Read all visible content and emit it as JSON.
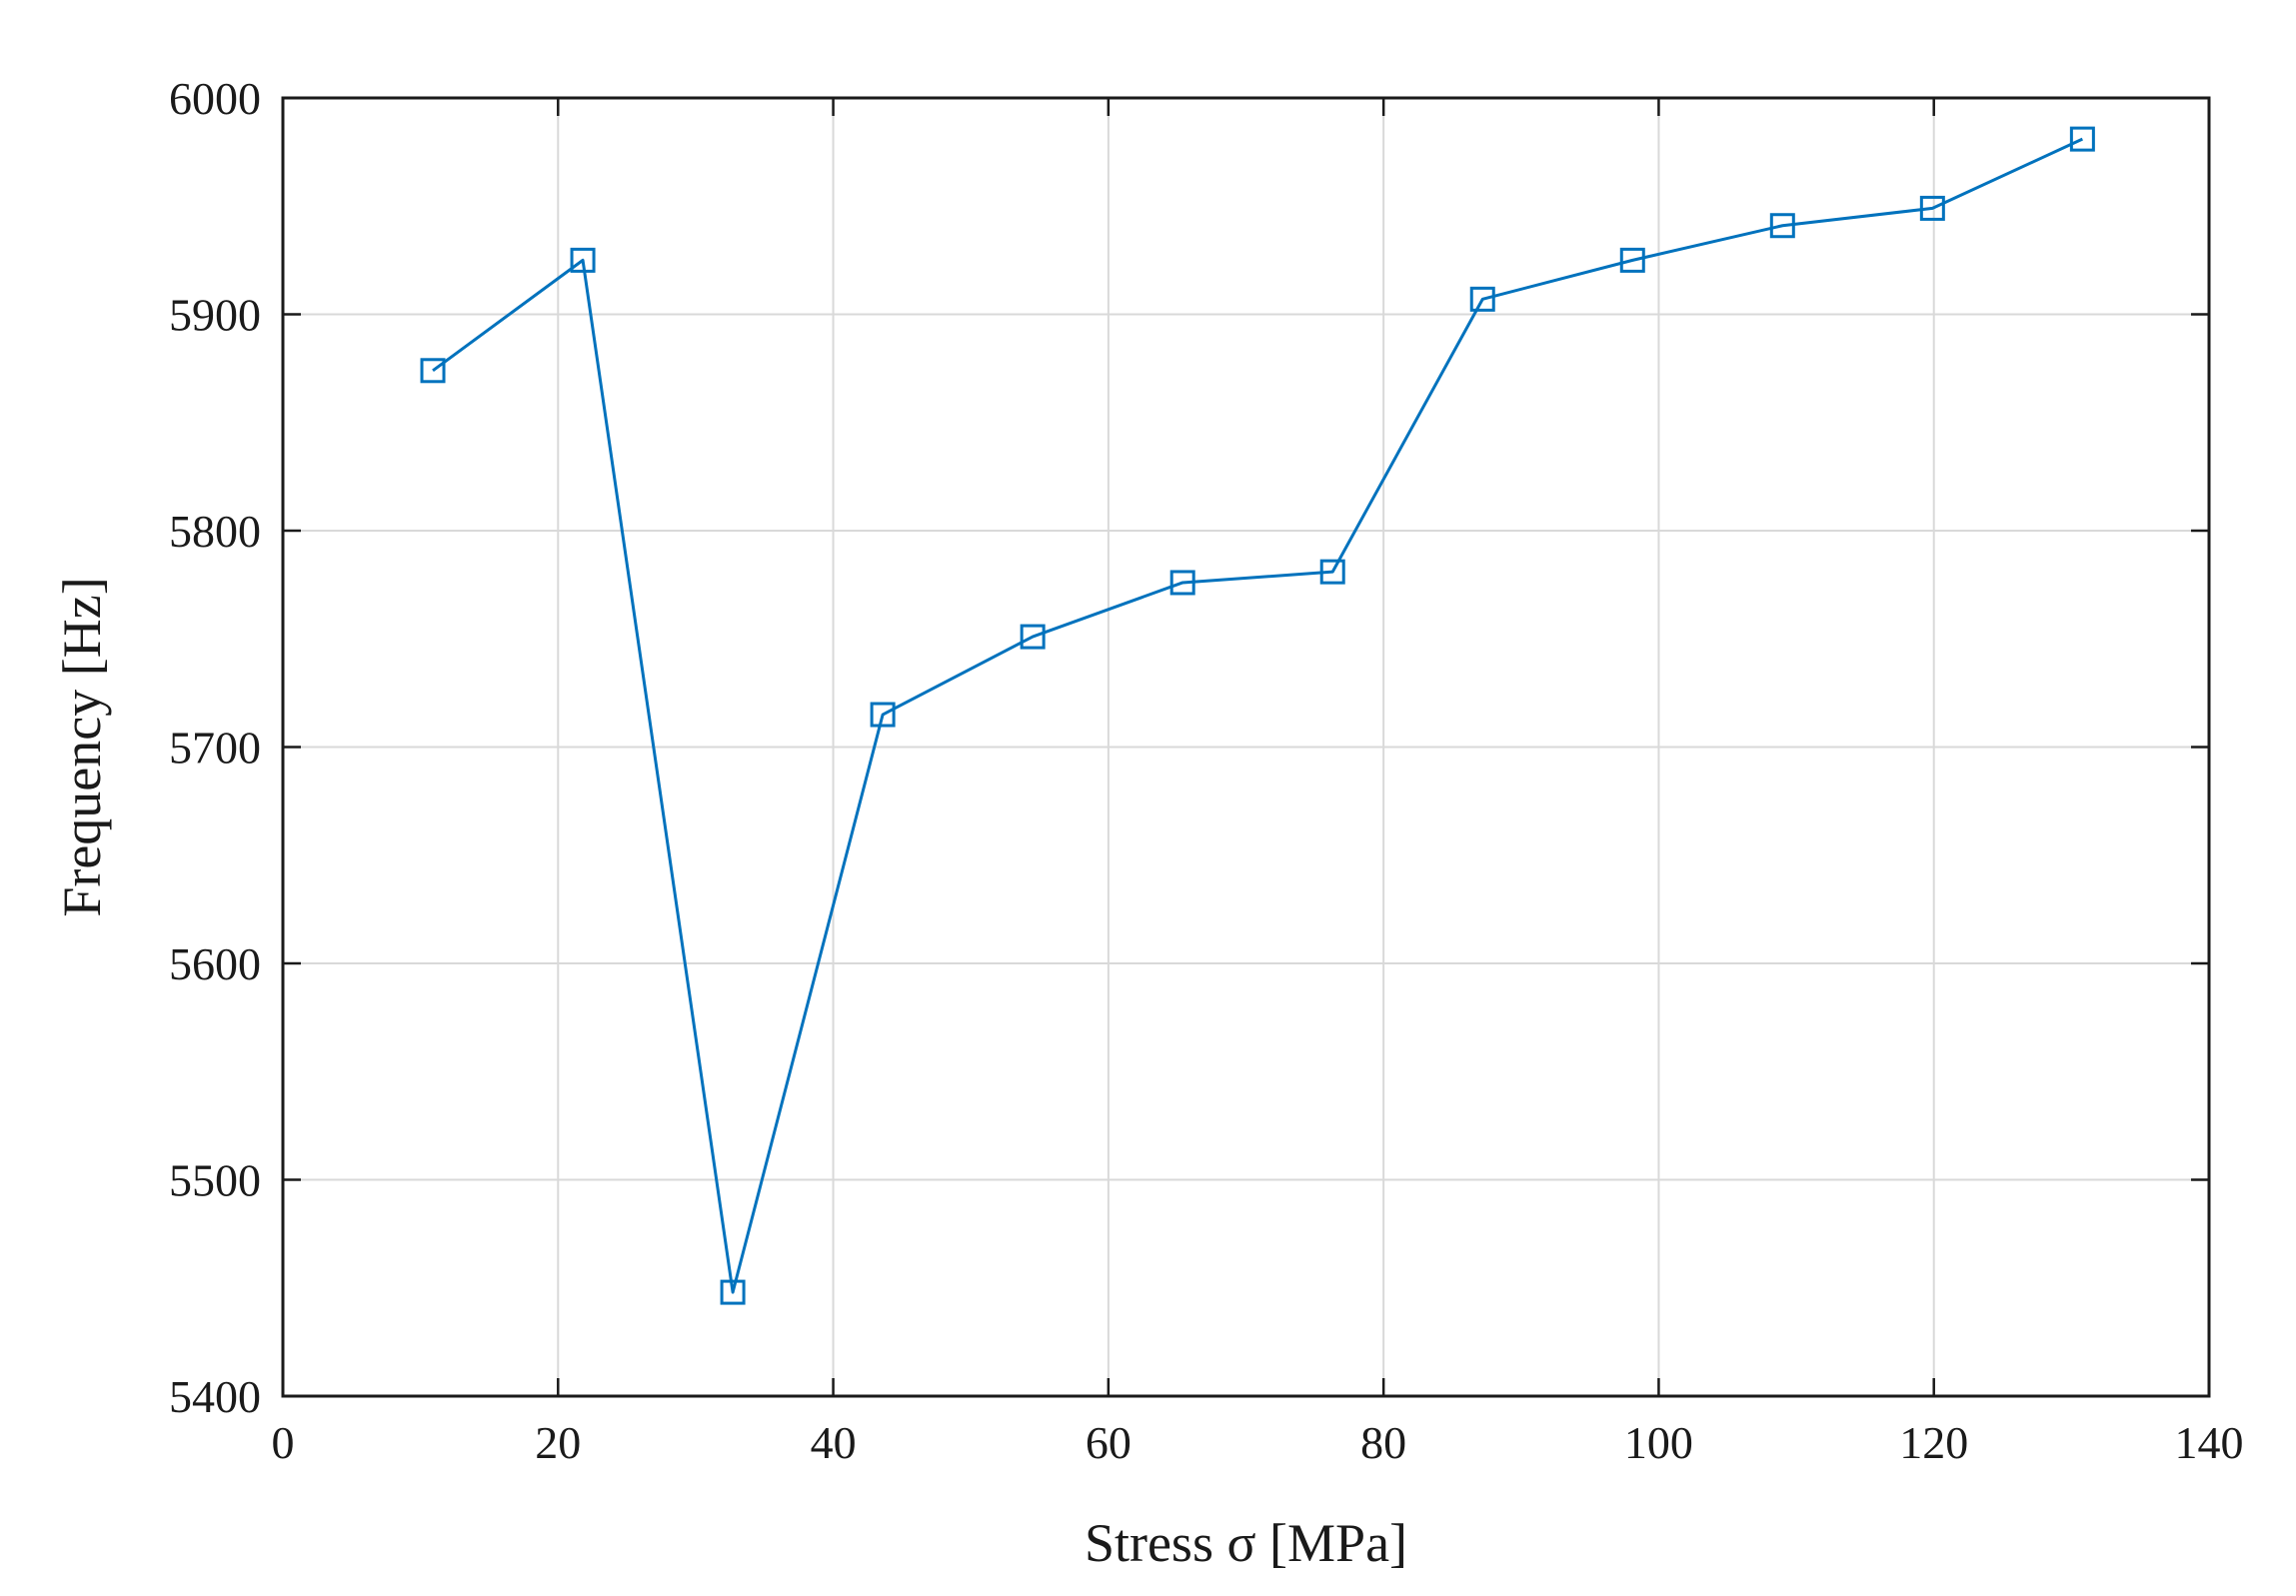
{
  "chart_data": {
    "type": "line",
    "xlabel": "Stress σ [MPa]",
    "ylabel": "Frequency [Hz]",
    "xlim": [
      0,
      140
    ],
    "ylim": [
      5400,
      6000
    ],
    "xticks": [
      0,
      20,
      40,
      60,
      80,
      100,
      120,
      140
    ],
    "yticks": [
      5400,
      5500,
      5600,
      5700,
      5800,
      5900,
      6000
    ],
    "grid": true,
    "series": [
      {
        "marker": "square",
        "color": "#0072BD",
        "x": [
          10.9,
          21.8,
          32.7,
          43.6,
          54.5,
          65.4,
          76.3,
          87.2,
          98.1,
          109.0,
          119.9,
          130.8
        ],
        "y": [
          5874,
          5925,
          5448,
          5715,
          5751,
          5776,
          5781,
          5907,
          5925,
          5941,
          5949,
          5981
        ]
      }
    ]
  }
}
